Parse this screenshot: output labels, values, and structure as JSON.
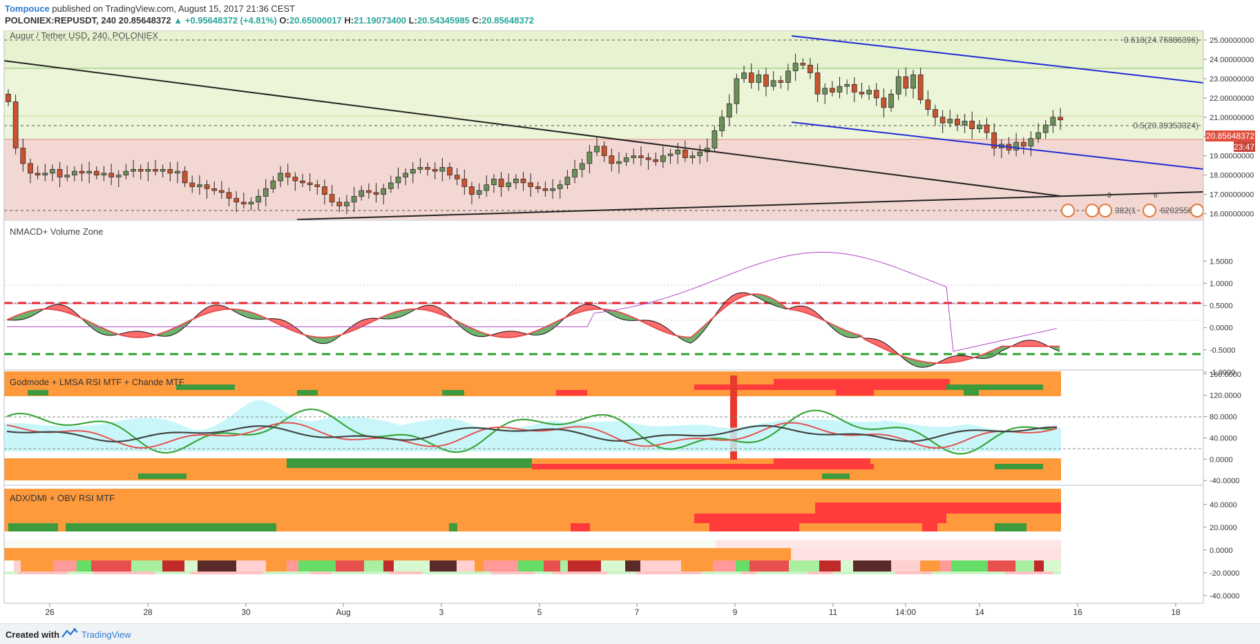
{
  "header": {
    "author": "Tompouce",
    "published_text": "published on TradingView.com, August 15, 2017 21:36 CEST",
    "symbol_line": "POLONIEX:REPUSDT, 240",
    "last": "20.85648372",
    "change": "+0.95648372 (+4.81%)",
    "o_label": "O:",
    "o_value": "20.65000017",
    "h_label": "H:",
    "h_value": "21.19073400",
    "l_label": "L:",
    "l_value": "20.54345985",
    "c_label": "C:",
    "c_value": "20.85648372"
  },
  "footer": {
    "created_with": "Created with",
    "brand": "TradingView"
  },
  "colors": {
    "up": "#6b8e5a",
    "down": "#c8532e",
    "zone_upper": "#e6f2d0",
    "zone_mid": "#ecf5d8",
    "zone_lower": "#f3d7d3",
    "trendline": "#222222",
    "channel": "#1f2bd6",
    "price_tag": "#e04f3e",
    "fill_orange": "#ff9a3c",
    "fill_green": "#3d9b3d",
    "fill_red": "#ff3b3b"
  },
  "chart_data": [
    {
      "type": "candlestick",
      "title": "Augur / Tether USD, 240, POLONIEX",
      "ylim": [
        15.7,
        25.5
      ],
      "yticks": [
        "25.00000000",
        "24.00000000",
        "23.00000000",
        "22.00000000",
        "21.00000000",
        "20.00000000",
        "19.00000000",
        "18.00000000",
        "17.00000000",
        "16.00000000"
      ],
      "ytick_values": [
        25,
        24,
        23,
        22,
        21,
        20,
        19,
        18,
        17,
        16
      ],
      "xlabels": [
        "26",
        "28",
        "30",
        "Aug",
        "3",
        "5",
        "7",
        "9",
        "11",
        "14:00",
        "14",
        "16",
        "18"
      ],
      "last_price_tag": "20.85648372",
      "countdown_tag": "23:47",
      "fib_labels": [
        "0.618(24.76886396)",
        "0.5(20.39353324)",
        "382(1",
        "6202558"
      ],
      "fib_levels": [
        24.76886396,
        20.39353324
      ],
      "event_badges": [
        "3",
        "6"
      ],
      "closes": [
        21.8,
        19.4,
        18.6,
        18.1,
        18.0,
        18.1,
        18.3,
        17.9,
        18.0,
        18.2,
        18.1,
        18.2,
        18.0,
        18.1,
        17.9,
        18.0,
        18.2,
        18.3,
        18.2,
        18.3,
        18.2,
        18.3,
        18.1,
        18.2,
        17.6,
        17.4,
        17.5,
        17.3,
        17.2,
        17.1,
        16.8,
        16.6,
        16.5,
        16.6,
        16.9,
        17.3,
        17.7,
        18.1,
        17.9,
        17.7,
        17.6,
        17.5,
        17.4,
        17.0,
        16.6,
        16.4,
        16.6,
        16.9,
        17.2,
        17.1,
        17.0,
        17.3,
        17.6,
        17.9,
        18.1,
        18.3,
        18.4,
        18.3,
        18.2,
        18.4,
        18.0,
        17.8,
        17.4,
        17.0,
        17.2,
        17.5,
        17.8,
        17.4,
        17.6,
        17.8,
        17.6,
        17.4,
        17.3,
        17.2,
        17.3,
        17.5,
        17.9,
        18.3,
        18.6,
        19.2,
        19.5,
        19.0,
        18.6,
        18.7,
        18.9,
        19.0,
        18.9,
        18.8,
        18.7,
        19.0,
        19.1,
        19.3,
        18.9,
        19.0,
        19.2,
        19.4,
        20.3,
        21.0,
        21.7,
        23.0,
        23.3,
        22.8,
        23.2,
        22.6,
        22.9,
        22.8,
        23.4,
        23.8,
        23.7,
        23.3,
        22.2,
        22.5,
        22.3,
        22.6,
        22.7,
        22.3,
        22.2,
        22.4,
        22.0,
        21.5,
        22.2,
        23.1,
        22.5,
        23.2,
        21.9,
        21.4,
        21.0,
        20.7,
        20.9,
        20.6,
        20.8,
        20.4,
        20.6,
        20.2,
        19.4,
        19.6,
        19.3,
        19.7,
        19.5,
        19.9,
        20.2,
        20.6,
        21.0,
        20.86
      ]
    },
    {
      "type": "line",
      "title": "NMACD+ Volume Zone",
      "ylim": [
        -1.0,
        1.8
      ],
      "yticks": [
        "1.5000",
        "1.0000",
        "0.5000",
        "0.0000",
        "-0.5000",
        "-1.0000"
      ],
      "ytick_values": [
        1.5,
        1.0,
        0.5,
        0.0,
        -0.5,
        -1.0
      ],
      "reference_levels": [
        0.65,
        -0.65
      ]
    },
    {
      "type": "line",
      "title": "Godmode + LMSA RSI MTF + Chande MTF",
      "ylim": [
        -45,
        165
      ],
      "yticks": [
        "160.0000",
        "120.0000",
        "80.0000",
        "40.0000",
        "0.0000",
        "-40.0000"
      ],
      "ytick_values": [
        160,
        120,
        80,
        40,
        0,
        -40
      ]
    },
    {
      "type": "heatmap",
      "title": "ADX/DMI + OBV RSI MTF",
      "ylim": [
        -45,
        55
      ],
      "yticks": [
        "40.0000",
        "20.0000",
        "0.0000",
        "-20.0000",
        "-40.0000"
      ],
      "ytick_values": [
        40,
        20,
        0,
        -20,
        -40
      ]
    }
  ]
}
